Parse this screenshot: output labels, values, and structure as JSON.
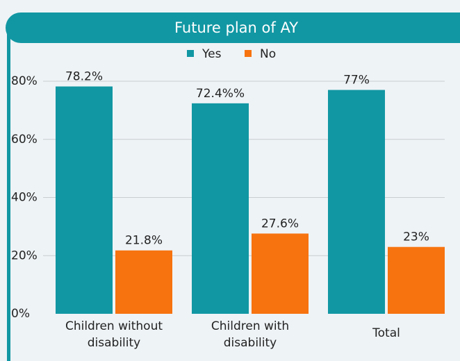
{
  "chart_data": {
    "type": "bar",
    "title": "Future plan of AY",
    "categories": [
      "Children without disability",
      "Children with disability",
      "Total"
    ],
    "series": [
      {
        "name": "Yes",
        "color": "#1197a3",
        "values": [
          78.2,
          72.4,
          77
        ],
        "value_labels": [
          "78.2%",
          "72.4%%",
          "77%"
        ]
      },
      {
        "name": "No",
        "color": "#f7730f",
        "values": [
          21.8,
          27.6,
          23
        ],
        "value_labels": [
          "21.8%",
          "27.6%",
          "23%"
        ]
      }
    ],
    "ylim": [
      0,
      80
    ],
    "yticks": [
      {
        "value": 0,
        "label": "0%"
      },
      {
        "value": 20,
        "label": "20%"
      },
      {
        "value": 40,
        "label": "40%"
      },
      {
        "value": 60,
        "label": "60%"
      },
      {
        "value": 80,
        "label": "80%"
      }
    ],
    "grid": true,
    "legend": "top"
  }
}
